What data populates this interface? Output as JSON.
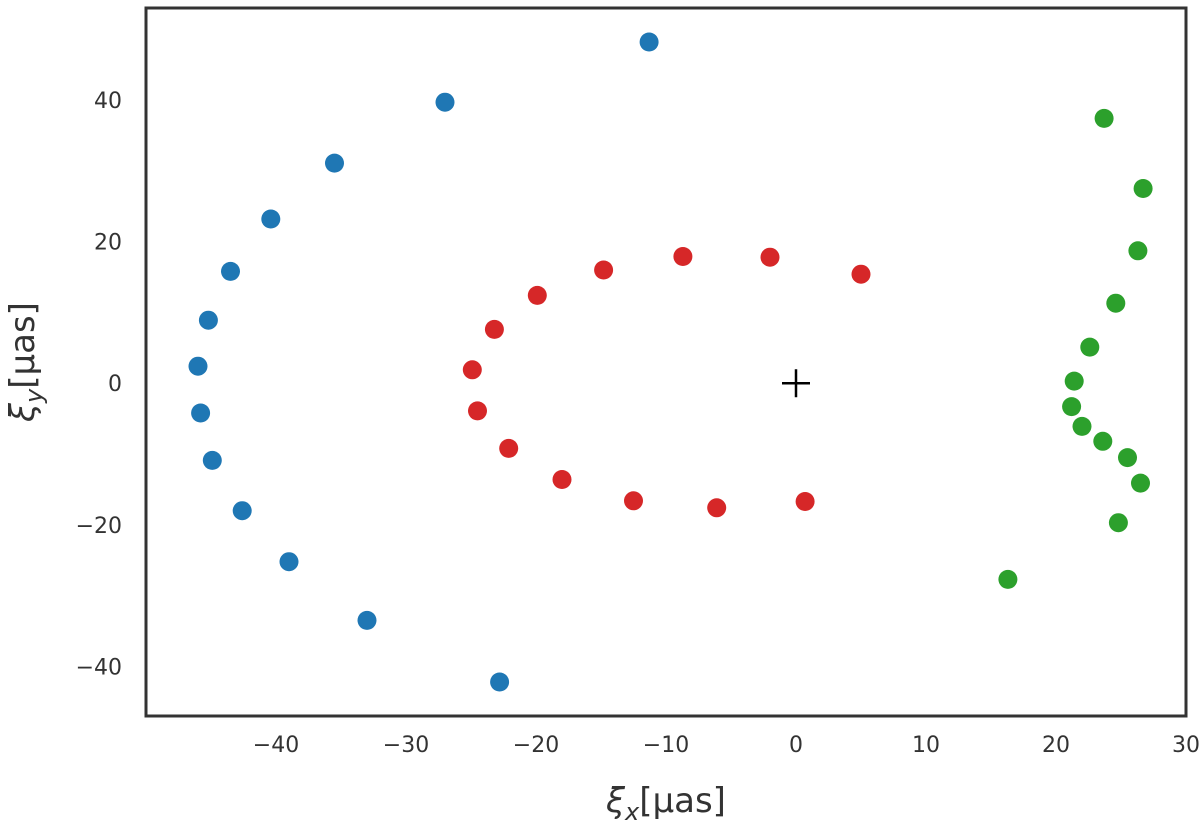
{
  "chart_data": {
    "type": "scatter",
    "title": "",
    "xlabel": "ξx[μas]",
    "ylabel": "ξy[μas]",
    "xlabel_parts": {
      "sym": "ξ",
      "sub": "x",
      "unit": "[μas]"
    },
    "ylabel_parts": {
      "sym": "ξ",
      "sub": "y",
      "unit": "[μas]"
    },
    "xlim": [
      -50,
      30
    ],
    "ylim": [
      -47,
      53
    ],
    "grid": false,
    "xticks": [
      -40,
      -30,
      -20,
      -10,
      0,
      10,
      20,
      30
    ],
    "xtick_labels": [
      "−40",
      "−30",
      "−20",
      "−10",
      "0",
      "10",
      "20",
      "30"
    ],
    "yticks": [
      -40,
      -20,
      0,
      20,
      40
    ],
    "ytick_labels": [
      "−40",
      "−20",
      "0",
      "20",
      "40"
    ],
    "marker": {
      "x": 0,
      "y": 0,
      "shape": "plus",
      "color": "#000000"
    },
    "series": [
      {
        "color": "#1f77b4",
        "points": [
          [
            -11.3,
            48.2
          ],
          [
            -27.0,
            39.7
          ],
          [
            -35.5,
            31.1
          ],
          [
            -40.4,
            23.2
          ],
          [
            -43.5,
            15.8
          ],
          [
            -45.2,
            8.9
          ],
          [
            -46.0,
            2.4
          ],
          [
            -45.8,
            -4.2
          ],
          [
            -44.9,
            -10.9
          ],
          [
            -42.6,
            -18.0
          ],
          [
            -39.0,
            -25.2
          ],
          [
            -33.0,
            -33.5
          ],
          [
            -22.8,
            -42.2
          ]
        ]
      },
      {
        "color": "#d62728",
        "points": [
          [
            5.0,
            15.4
          ],
          [
            -2.0,
            17.8
          ],
          [
            -8.7,
            17.9
          ],
          [
            -14.8,
            16.0
          ],
          [
            -19.9,
            12.4
          ],
          [
            -23.2,
            7.6
          ],
          [
            -24.9,
            1.9
          ],
          [
            -24.5,
            -3.9
          ],
          [
            -22.1,
            -9.2
          ],
          [
            -18.0,
            -13.6
          ],
          [
            -12.5,
            -16.6
          ],
          [
            -6.1,
            -17.6
          ],
          [
            0.7,
            -16.7
          ]
        ]
      },
      {
        "color": "#2ca02c",
        "points": [
          [
            23.7,
            37.4
          ],
          [
            26.7,
            27.5
          ],
          [
            26.3,
            18.7
          ],
          [
            24.6,
            11.3
          ],
          [
            22.6,
            5.1
          ],
          [
            21.4,
            0.3
          ],
          [
            21.2,
            -3.3
          ],
          [
            22.0,
            -6.1
          ],
          [
            23.6,
            -8.2
          ],
          [
            25.5,
            -10.5
          ],
          [
            26.5,
            -14.1
          ],
          [
            24.8,
            -19.7
          ],
          [
            16.3,
            -27.7
          ]
        ]
      }
    ]
  }
}
